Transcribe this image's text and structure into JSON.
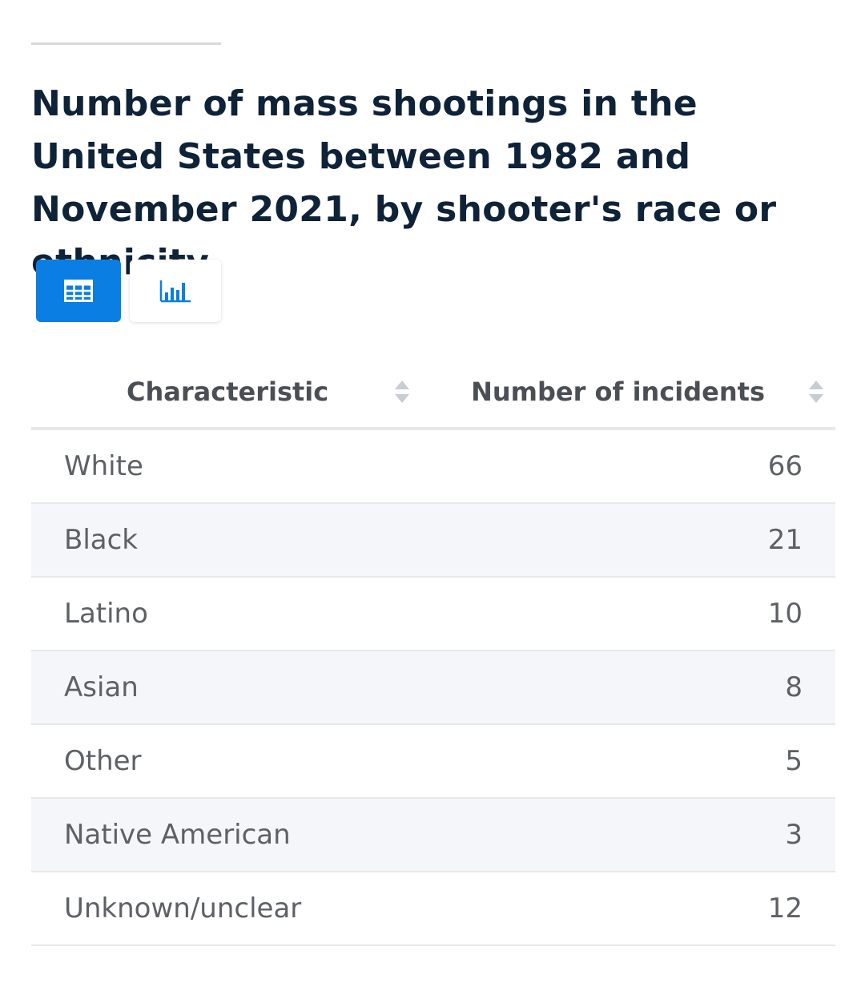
{
  "chart_data": {
    "type": "table",
    "title": "Number of mass shootings in the United States between 1982 and November 2021, by shooter's race or ethnicity",
    "columns": [
      "Characteristic",
      "Number of incidents"
    ],
    "rows": [
      {
        "label": "White",
        "value": "66"
      },
      {
        "label": "Black",
        "value": "21"
      },
      {
        "label": "Latino",
        "value": "10"
      },
      {
        "label": "Asian",
        "value": "8"
      },
      {
        "label": "Other",
        "value": "5"
      },
      {
        "label": "Native American",
        "value": "3"
      },
      {
        "label": "Unknown/unclear",
        "value": "12"
      }
    ]
  },
  "view_toggle": {
    "active": "table",
    "table_icon": "table-grid-icon",
    "chart_icon": "bar-chart-icon"
  },
  "colors": {
    "accent": "#0b7ee4",
    "title": "#0e2238",
    "stripe": "#f4f6f9"
  }
}
